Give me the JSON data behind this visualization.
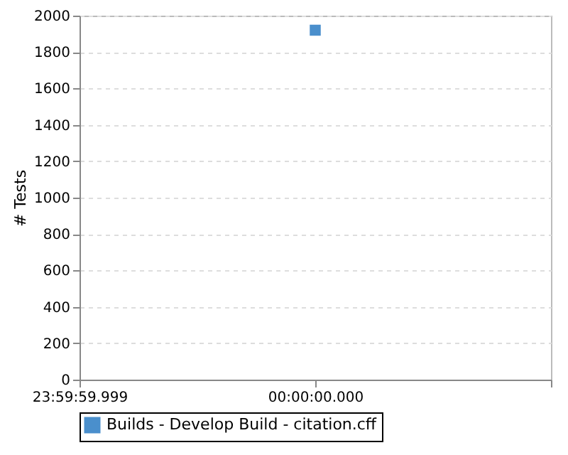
{
  "chart_data": {
    "type": "line",
    "ylabel": "# Tests",
    "categories": [
      "23:59:59.999",
      "00:00:00.000",
      null
    ],
    "series": [
      {
        "name": "Builds - Develop Build - citation.cff",
        "color": "#4a8fcc",
        "values": [
          null,
          1920,
          null
        ]
      }
    ],
    "ylim": [
      0,
      2000
    ],
    "yticks": [
      0,
      200,
      400,
      600,
      800,
      1000,
      1200,
      1400,
      1600,
      1800,
      2000
    ],
    "grid": "y",
    "legend": "bottom",
    "marker": "square"
  }
}
